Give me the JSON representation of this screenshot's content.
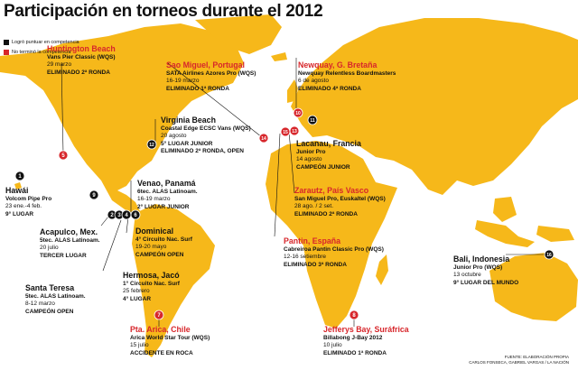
{
  "title": "Participación en torneos durante el 2012",
  "legend": [
    {
      "color": "#111111",
      "label": "Logró puntuar en competencia"
    },
    {
      "color": "#d7262b",
      "label": "No terminó la competencia"
    }
  ],
  "colors": {
    "land": "#f6b81a",
    "sea": "#ffffff",
    "black_marker": "#111111",
    "red_marker": "#d7262b"
  },
  "labels": [
    {
      "id": "huntington",
      "city": "Huntington Beach",
      "red": true,
      "event": "Vans Pier Classic (WQS)",
      "date": "29 marzo",
      "result": "ELIMINADO 2ª RONDA"
    },
    {
      "id": "sao-miguel",
      "city": "Sao Miguel, Portugal",
      "red": true,
      "event": "SATA Airlines Azores Pro (WQS)",
      "date": "16-19 marzo",
      "result": "ELIMINADO 1ª RONDA"
    },
    {
      "id": "newquay",
      "city": "Newquay, G. Bretaña",
      "red": true,
      "event": "Newquay Relentless Boardmasters",
      "date": "6 de agosto",
      "result": "ELIMINADO 4ª RONDA"
    },
    {
      "id": "virginia",
      "city": "Virginia Beach",
      "red": false,
      "event": "Coastal Edge ECSC Vans (WQS)",
      "date": "20 agosto",
      "result": "5° LUGAR JUNIOR\nELIMINADO 2ª RONDA, OPEN"
    },
    {
      "id": "lacanau",
      "city": "Lacanau, Francia",
      "red": false,
      "event": "Junior Pro",
      "date": "14 agosto",
      "result": "CAMPEÓN JUNIOR"
    },
    {
      "id": "hawai",
      "city": "Hawái",
      "red": false,
      "event": "Volcom Pipe Pro",
      "date": "23 ene.-4 feb.",
      "result": "9° LUGAR"
    },
    {
      "id": "venao",
      "city": "Venao, Panamá",
      "red": false,
      "event": "6tec. ALAS Latinoam.",
      "date": "16-19 marzo",
      "result": "2° LUGAR JUNIOR"
    },
    {
      "id": "zarautz",
      "city": "Zarautz, País Vasco",
      "red": true,
      "event": "San Miguel Pro, Euskaltel (WQS)",
      "date": "28 ago. / 2 set.",
      "result": "ELIMINADO 2ª RONDA"
    },
    {
      "id": "acapulco",
      "city": "Acapulco, Mex.",
      "red": false,
      "event": "5tec. ALAS Latinoam.",
      "date": "20 julio",
      "result": "TERCER LUGAR"
    },
    {
      "id": "dominical",
      "city": "Dominical",
      "red": false,
      "event": "4° Circuito Nac. Surf",
      "date": "19-20 mayo",
      "result": "CAMPEÓN OPEN"
    },
    {
      "id": "pantin",
      "city": "Pantin, España",
      "red": true,
      "event": "Cabreiroa Pantin Classic Pro (WQS)",
      "date": "12-16 setiembre",
      "result": "ELIMINADO 3ª RONDA"
    },
    {
      "id": "hermosa",
      "city": "Hermosa, Jacó",
      "red": false,
      "event": "1° Circuito Nac. Surf",
      "date": "25 febrero",
      "result": "4° LUGAR"
    },
    {
      "id": "santa-teresa",
      "city": "Santa Teresa",
      "red": false,
      "event": "5tec. ALAS Latinoam.",
      "date": "8-12 marzo",
      "result": "CAMPEÓN OPEN"
    },
    {
      "id": "bali",
      "city": "Bali, Indonesia",
      "red": false,
      "event": "Junior Pro (WQS)",
      "date": "13 octubre",
      "result": "9° LUGAR DEL MUNDO"
    },
    {
      "id": "arica",
      "city": "Pta. Arica, Chile",
      "red": true,
      "event": "Arica World Star Tour (WQS)",
      "date": "15 julio",
      "result": "ACCIDENTE EN ROCA"
    },
    {
      "id": "jeffreys",
      "city": "Jefferys Bay, Suráfrica",
      "red": true,
      "event": "Billabong J-Bay 2012",
      "date": "10 julio",
      "result": "ELIMINADO 1ª RONDA"
    }
  ],
  "markers": [
    {
      "n": "1",
      "color": "black"
    },
    {
      "n": "2",
      "color": "black"
    },
    {
      "n": "3",
      "color": "black"
    },
    {
      "n": "4",
      "color": "black"
    },
    {
      "n": "5",
      "color": "red"
    },
    {
      "n": "6",
      "color": "black"
    },
    {
      "n": "7",
      "color": "red"
    },
    {
      "n": "8",
      "color": "red"
    },
    {
      "n": "9",
      "color": "black"
    },
    {
      "n": "10",
      "color": "red"
    },
    {
      "n": "11",
      "color": "black"
    },
    {
      "n": "12",
      "color": "black"
    },
    {
      "n": "13",
      "color": "red"
    },
    {
      "n": "14",
      "color": "red"
    },
    {
      "n": "15",
      "color": "red"
    },
    {
      "n": "16",
      "color": "black"
    }
  ],
  "credits": [
    "FUENTE: ELABORACIÓN PROPIA",
    "CARLOS FONSECA, GABRIEL VARGAS / LA NACIÓN"
  ]
}
